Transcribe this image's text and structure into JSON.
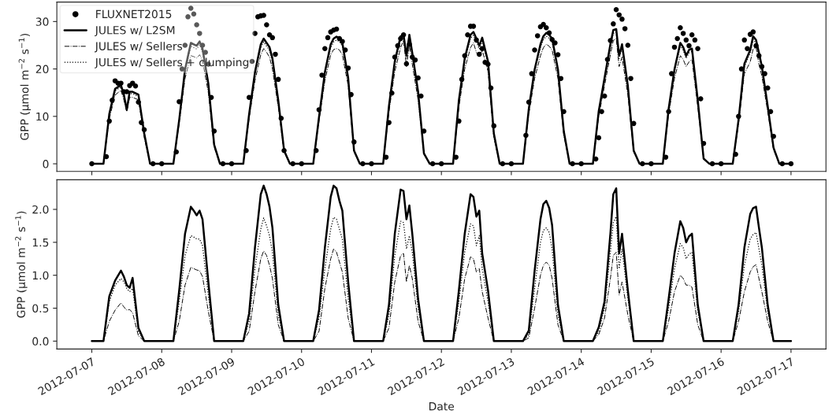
{
  "chart_data": [
    {
      "type": "line",
      "ylabel": "GPP (μmol m$^{−2}$ s$^{−1}$)",
      "legend": "top left",
      "tick_labels": "y",
      "xlim": [
        "2012-07-06T12:00",
        "2012-07-17T12:00"
      ],
      "xticks": [
        "2012-07-07",
        "2012-07-08",
        "2012-07-09",
        "2012-07-10",
        "2012-07-11",
        "2012-07-12",
        "2012-07-13",
        "2012-07-14",
        "2012-07-15",
        "2012-07-16",
        "2012-07-17"
      ],
      "ylim": [
        -1.6,
        34.1
      ],
      "yticks": [
        0,
        10,
        20,
        30
      ],
      "x": [
        "2012-07-07T00:00",
        "2012-07-07T04:00",
        "2012-07-07T06:00",
        "2012-07-07T08:00",
        "2012-07-07T10:00",
        "2012-07-07T11:00",
        "2012-07-07T12:00",
        "2012-07-07T13:00",
        "2012-07-07T14:00",
        "2012-07-07T16:00",
        "2012-07-07T18:00",
        "2012-07-07T20:00",
        "2012-07-08T00:00",
        "2012-07-08T04:00",
        "2012-07-08T06:00",
        "2012-07-08T08:00",
        "2012-07-08T10:00",
        "2012-07-08T11:00",
        "2012-07-08T12:00",
        "2012-07-08T13:00",
        "2012-07-08T14:00",
        "2012-07-08T16:00",
        "2012-07-08T18:00",
        "2012-07-08T20:00",
        "2012-07-09T00:00",
        "2012-07-09T04:00",
        "2012-07-09T06:00",
        "2012-07-09T08:00",
        "2012-07-09T10:00",
        "2012-07-09T11:00",
        "2012-07-09T12:00",
        "2012-07-09T13:00",
        "2012-07-09T14:00",
        "2012-07-09T16:00",
        "2012-07-09T18:00",
        "2012-07-09T20:00",
        "2012-07-10T00:00",
        "2012-07-10T04:00",
        "2012-07-10T06:00",
        "2012-07-10T08:00",
        "2012-07-10T10:00",
        "2012-07-10T11:00",
        "2012-07-10T12:00",
        "2012-07-10T13:00",
        "2012-07-10T14:00",
        "2012-07-10T16:00",
        "2012-07-10T18:00",
        "2012-07-10T20:00",
        "2012-07-11T00:00",
        "2012-07-11T04:00",
        "2012-07-11T06:00",
        "2012-07-11T08:00",
        "2012-07-11T10:00",
        "2012-07-11T11:00",
        "2012-07-11T12:00",
        "2012-07-11T13:00",
        "2012-07-11T14:00",
        "2012-07-11T16:00",
        "2012-07-11T18:00",
        "2012-07-11T20:00",
        "2012-07-12T00:00",
        "2012-07-12T04:00",
        "2012-07-12T06:00",
        "2012-07-12T08:00",
        "2012-07-12T10:00",
        "2012-07-12T11:00",
        "2012-07-12T12:00",
        "2012-07-12T13:00",
        "2012-07-12T14:00",
        "2012-07-12T16:00",
        "2012-07-12T18:00",
        "2012-07-12T20:00",
        "2012-07-13T00:00",
        "2012-07-13T04:00",
        "2012-07-13T06:00",
        "2012-07-13T08:00",
        "2012-07-13T10:00",
        "2012-07-13T11:00",
        "2012-07-13T12:00",
        "2012-07-13T13:00",
        "2012-07-13T14:00",
        "2012-07-13T16:00",
        "2012-07-13T18:00",
        "2012-07-13T20:00",
        "2012-07-14T00:00",
        "2012-07-14T04:00",
        "2012-07-14T06:00",
        "2012-07-14T08:00",
        "2012-07-14T10:00",
        "2012-07-14T11:00",
        "2012-07-14T12:00",
        "2012-07-14T13:00",
        "2012-07-14T14:00",
        "2012-07-14T16:00",
        "2012-07-14T18:00",
        "2012-07-14T20:00",
        "2012-07-15T00:00",
        "2012-07-15T04:00",
        "2012-07-15T06:00",
        "2012-07-15T08:00",
        "2012-07-15T10:00",
        "2012-07-15T11:00",
        "2012-07-15T12:00",
        "2012-07-15T13:00",
        "2012-07-15T14:00",
        "2012-07-15T16:00",
        "2012-07-15T18:00",
        "2012-07-15T20:00",
        "2012-07-16T00:00",
        "2012-07-16T04:00",
        "2012-07-16T06:00",
        "2012-07-16T08:00",
        "2012-07-16T10:00",
        "2012-07-16T11:00",
        "2012-07-16T12:00",
        "2012-07-16T13:00",
        "2012-07-16T14:00",
        "2012-07-16T16:00",
        "2012-07-16T18:00",
        "2012-07-16T20:00",
        "2012-07-17T00:00"
      ],
      "series": [
        {
          "name": "FLUXNET2015",
          "type": "scatter",
          "marker": "circle",
          "color": "#000000",
          "x": [
            "2012-07-07T00:00",
            "2012-07-07T05:00",
            "2012-07-07T06:00",
            "2012-07-07T07:00",
            "2012-07-07T08:00",
            "2012-07-07T09:00",
            "2012-07-07T10:00",
            "2012-07-07T11:00",
            "2012-07-07T12:00",
            "2012-07-07T13:00",
            "2012-07-07T14:00",
            "2012-07-07T15:00",
            "2012-07-07T16:00",
            "2012-07-07T17:00",
            "2012-07-07T18:00",
            "2012-07-07T21:00",
            "2012-07-08T00:00",
            "2012-07-08T05:00",
            "2012-07-08T06:00",
            "2012-07-08T07:00",
            "2012-07-08T08:00",
            "2012-07-08T09:00",
            "2012-07-08T10:00",
            "2012-07-08T11:00",
            "2012-07-08T12:00",
            "2012-07-08T13:00",
            "2012-07-08T14:00",
            "2012-07-08T15:00",
            "2012-07-08T16:00",
            "2012-07-08T17:00",
            "2012-07-08T18:00",
            "2012-07-08T21:00",
            "2012-07-09T00:00",
            "2012-07-09T05:00",
            "2012-07-09T06:00",
            "2012-07-09T07:00",
            "2012-07-09T08:00",
            "2012-07-09T09:00",
            "2012-07-09T10:00",
            "2012-07-09T11:00",
            "2012-07-09T12:00",
            "2012-07-09T13:00",
            "2012-07-09T14:00",
            "2012-07-09T15:00",
            "2012-07-09T16:00",
            "2012-07-09T17:00",
            "2012-07-09T18:00",
            "2012-07-09T21:00",
            "2012-07-10T00:00",
            "2012-07-10T05:00",
            "2012-07-10T06:00",
            "2012-07-10T07:00",
            "2012-07-10T08:00",
            "2012-07-10T09:00",
            "2012-07-10T10:00",
            "2012-07-10T11:00",
            "2012-07-10T12:00",
            "2012-07-10T13:00",
            "2012-07-10T14:00",
            "2012-07-10T15:00",
            "2012-07-10T16:00",
            "2012-07-10T17:00",
            "2012-07-10T18:00",
            "2012-07-10T21:00",
            "2012-07-11T00:00",
            "2012-07-11T05:00",
            "2012-07-11T06:00",
            "2012-07-11T07:00",
            "2012-07-11T08:00",
            "2012-07-11T09:00",
            "2012-07-11T10:00",
            "2012-07-11T11:00",
            "2012-07-11T12:00",
            "2012-07-11T13:00",
            "2012-07-11T14:00",
            "2012-07-11T15:00",
            "2012-07-11T16:00",
            "2012-07-11T17:00",
            "2012-07-11T18:00",
            "2012-07-11T21:00",
            "2012-07-12T00:00",
            "2012-07-12T05:00",
            "2012-07-12T06:00",
            "2012-07-12T07:00",
            "2012-07-12T08:00",
            "2012-07-12T09:00",
            "2012-07-12T10:00",
            "2012-07-12T11:00",
            "2012-07-12T12:00",
            "2012-07-12T13:00",
            "2012-07-12T14:00",
            "2012-07-12T15:00",
            "2012-07-12T16:00",
            "2012-07-12T17:00",
            "2012-07-12T18:00",
            "2012-07-12T21:00",
            "2012-07-13T00:00",
            "2012-07-13T05:00",
            "2012-07-13T06:00",
            "2012-07-13T07:00",
            "2012-07-13T08:00",
            "2012-07-13T09:00",
            "2012-07-13T10:00",
            "2012-07-13T11:00",
            "2012-07-13T12:00",
            "2012-07-13T13:00",
            "2012-07-13T14:00",
            "2012-07-13T15:00",
            "2012-07-13T16:00",
            "2012-07-13T17:00",
            "2012-07-13T18:00",
            "2012-07-13T21:00",
            "2012-07-14T00:00",
            "2012-07-14T05:00",
            "2012-07-14T06:00",
            "2012-07-14T07:00",
            "2012-07-14T08:00",
            "2012-07-14T09:00",
            "2012-07-14T10:00",
            "2012-07-14T11:00",
            "2012-07-14T12:00",
            "2012-07-14T13:00",
            "2012-07-14T14:00",
            "2012-07-14T15:00",
            "2012-07-14T16:00",
            "2012-07-14T17:00",
            "2012-07-14T18:00",
            "2012-07-14T21:00",
            "2012-07-15T00:00",
            "2012-07-15T05:00",
            "2012-07-15T06:00",
            "2012-07-15T07:00",
            "2012-07-15T08:00",
            "2012-07-15T09:00",
            "2012-07-15T10:00",
            "2012-07-15T11:00",
            "2012-07-15T12:00",
            "2012-07-15T13:00",
            "2012-07-15T14:00",
            "2012-07-15T15:00",
            "2012-07-15T16:00",
            "2012-07-15T17:00",
            "2012-07-15T18:00",
            "2012-07-15T21:00",
            "2012-07-16T00:00",
            "2012-07-16T05:00",
            "2012-07-16T06:00",
            "2012-07-16T07:00",
            "2012-07-16T08:00",
            "2012-07-16T09:00",
            "2012-07-16T10:00",
            "2012-07-16T11:00",
            "2012-07-16T12:00",
            "2012-07-16T13:00",
            "2012-07-16T14:00",
            "2012-07-16T15:00",
            "2012-07-16T16:00",
            "2012-07-16T17:00",
            "2012-07-16T18:00",
            "2012-07-16T21:00",
            "2012-07-17T00:00"
          ],
          "values": [
            0,
            1.5,
            9,
            13.4,
            17.5,
            17,
            17,
            15.2,
            15.2,
            16.5,
            17,
            16.4,
            13,
            8.7,
            7.2,
            0,
            0,
            2.5,
            13.1,
            20,
            25,
            31,
            32.8,
            31.6,
            29.3,
            27.5,
            25,
            23.5,
            21,
            14,
            6.9,
            0,
            0,
            2.8,
            14,
            21.6,
            27.5,
            31,
            31.2,
            31.3,
            29.3,
            27.2,
            26.6,
            23.1,
            17.8,
            9.6,
            2.8,
            0,
            0,
            2.8,
            11.4,
            18.7,
            24.3,
            26.6,
            27.8,
            28.2,
            28.4,
            26.4,
            25.8,
            24,
            20.2,
            14.6,
            4.6,
            0,
            0,
            1.4,
            8.7,
            14.9,
            22.5,
            24.9,
            26.4,
            27.2,
            21.1,
            25.2,
            22.5,
            21.9,
            18.1,
            14.3,
            6.9,
            0,
            0,
            1.4,
            9,
            17.8,
            22.8,
            27.2,
            29,
            29,
            26.1,
            23.1,
            24.3,
            21.4,
            21,
            16,
            8,
            0,
            0,
            6,
            13,
            19,
            24,
            27,
            28.9,
            29.4,
            28.7,
            27.6,
            26.2,
            25.5,
            23,
            18,
            11,
            0,
            0,
            1,
            5.5,
            11,
            14.3,
            22,
            26,
            29.5,
            32.5,
            31.4,
            30.5,
            28.5,
            25,
            18,
            8.5,
            0,
            0,
            1.4,
            11,
            19,
            24.6,
            26.4,
            28.7,
            27.5,
            26.1,
            24.9,
            27.2,
            26.1,
            24.3,
            13.7,
            4.3,
            0,
            0,
            2,
            10,
            20,
            26.1,
            24.3,
            27.3,
            27.8,
            24.9,
            22.8,
            20.5,
            19,
            16,
            11,
            5.8,
            0,
            0
          ]
        },
        {
          "name": "JULES w/ L2SM",
          "line_style": "solid",
          "marker": "none",
          "color": "#000000",
          "values": [
            0,
            0,
            10.5,
            15.8,
            16.6,
            14.6,
            11.4,
            15.2,
            15.2,
            14.6,
            6.4,
            0,
            0,
            0,
            9.3,
            19.9,
            25.5,
            25.2,
            24.9,
            25.8,
            24.3,
            16.9,
            4,
            0,
            0,
            0,
            10.5,
            19.3,
            25.2,
            26.4,
            25.5,
            24.6,
            22.2,
            13.4,
            2.8,
            0,
            0,
            0,
            9.9,
            19.3,
            25.2,
            26.4,
            26.8,
            26.5,
            25.5,
            18.1,
            2.8,
            0,
            0,
            0,
            12.2,
            21.6,
            26.9,
            27.2,
            22.8,
            27.2,
            23.4,
            15.2,
            2.2,
            0,
            0,
            0,
            13.4,
            22.2,
            27.2,
            27.8,
            26.4,
            24.9,
            26.6,
            21.6,
            6.4,
            0,
            0,
            0,
            11.6,
            19.9,
            25.2,
            26.9,
            27.6,
            27.2,
            26.4,
            19.9,
            6.9,
            0,
            0,
            0,
            11.1,
            18.1,
            25.2,
            28.2,
            28.4,
            22.8,
            25.2,
            16.4,
            2.8,
            0,
            0,
            0,
            11.6,
            19.9,
            25.5,
            24.6,
            22.8,
            24,
            24.3,
            13.4,
            1.1,
            0,
            0,
            0,
            9.3,
            21.1,
            24,
            26.9,
            26.1,
            23.4,
            20.5,
            12.2,
            3.4,
            0,
            0
          ]
        },
        {
          "name": "JULES w/ Sellers",
          "line_style": "dashdot",
          "marker": "none",
          "color": "#000000",
          "values": [
            0,
            0,
            9.5,
            14.5,
            15.5,
            13.5,
            11,
            14,
            14,
            13.5,
            5.5,
            0,
            0,
            0,
            8.5,
            18,
            22.8,
            22.6,
            22.3,
            23,
            21.8,
            15,
            3.5,
            0,
            0,
            0,
            9.5,
            17.5,
            23,
            24.3,
            23.5,
            22.5,
            20,
            12,
            2.5,
            0,
            0,
            0,
            9,
            17.5,
            23,
            24.1,
            24.3,
            24,
            23,
            16.5,
            2.5,
            0,
            0,
            0,
            11,
            19.5,
            24.5,
            26,
            20.5,
            25,
            21,
            13.5,
            2,
            0,
            0,
            0,
            12,
            20,
            24.5,
            25.5,
            23.5,
            22.5,
            24,
            19.5,
            5.5,
            0,
            0,
            0,
            10.5,
            18,
            22.8,
            24.5,
            25.2,
            24.8,
            24,
            18,
            6,
            0,
            0,
            0,
            10,
            16.5,
            23,
            26,
            26.4,
            20.5,
            22.5,
            14.5,
            2.5,
            0,
            0,
            0,
            10.5,
            18,
            22.8,
            22,
            20.5,
            21.5,
            22,
            12,
            1,
            0,
            0,
            0,
            8.5,
            19,
            21.5,
            24.2,
            24.6,
            21,
            18.5,
            11,
            3,
            0,
            0
          ]
        },
        {
          "name": "JULES w/ Sellers + clumping",
          "line_style": "dotted",
          "marker": "none",
          "color": "#000000",
          "values": [
            0,
            0,
            10.2,
            15.4,
            16.2,
            14.2,
            11.2,
            14.8,
            14.8,
            14.2,
            6.2,
            0,
            0,
            0,
            9.1,
            19.4,
            24.8,
            24.5,
            24.2,
            25.1,
            23.6,
            16.5,
            3.9,
            0,
            0,
            0,
            10.2,
            18.8,
            24.5,
            25.7,
            24.8,
            23.9,
            21.6,
            13,
            2.7,
            0,
            0,
            0,
            9.6,
            18.8,
            24.5,
            25.7,
            26.1,
            25.8,
            24.8,
            17.6,
            2.7,
            0,
            0,
            0,
            11.9,
            21,
            26.2,
            26.5,
            22.2,
            26.5,
            22.8,
            14.8,
            2.1,
            0,
            0,
            0,
            13,
            21.6,
            26.5,
            27.1,
            25.7,
            24.2,
            25.9,
            21,
            6.2,
            0,
            0,
            0,
            11.3,
            19.4,
            24.5,
            26.2,
            26.9,
            26.5,
            25.7,
            19.4,
            6.7,
            0,
            0,
            0,
            10.8,
            17.6,
            24.5,
            27.5,
            27.7,
            22.2,
            24.5,
            16,
            2.7,
            0,
            0,
            0,
            11.3,
            19.4,
            24.8,
            24,
            22.2,
            23.4,
            23.7,
            13,
            1.1,
            0,
            0,
            0,
            9.1,
            20.5,
            23.4,
            26.2,
            25.4,
            22.8,
            20,
            11.9,
            3.3,
            0,
            0
          ]
        }
      ]
    },
    {
      "type": "line",
      "ylabel": "GPP (μmol m$^{−2}$ s$^{−1}$)",
      "xlabel": "Date",
      "xlim": [
        "2012-07-06T12:00",
        "2012-07-17T12:00"
      ],
      "xticks": [
        "2012-07-07",
        "2012-07-08",
        "2012-07-09",
        "2012-07-10",
        "2012-07-11",
        "2012-07-12",
        "2012-07-13",
        "2012-07-14",
        "2012-07-15",
        "2012-07-16",
        "2012-07-17"
      ],
      "ylim": [
        -0.12,
        2.45
      ],
      "yticks": [
        {
          "value": 0,
          "label": "0.0"
        },
        0.5,
        {
          "value": 1,
          "label": "1.0"
        },
        1.5,
        {
          "value": 2,
          "label": "2.0"
        }
      ],
      "x": [
        "2012-07-07T00:00",
        "2012-07-07T04:00",
        "2012-07-07T06:00",
        "2012-07-07T08:00",
        "2012-07-07T10:00",
        "2012-07-07T11:00",
        "2012-07-07T12:00",
        "2012-07-07T13:00",
        "2012-07-07T14:00",
        "2012-07-07T16:00",
        "2012-07-07T18:00",
        "2012-07-07T20:00",
        "2012-07-08T00:00",
        "2012-07-08T04:00",
        "2012-07-08T06:00",
        "2012-07-08T08:00",
        "2012-07-08T10:00",
        "2012-07-08T11:00",
        "2012-07-08T12:00",
        "2012-07-08T13:00",
        "2012-07-08T14:00",
        "2012-07-08T16:00",
        "2012-07-08T18:00",
        "2012-07-08T20:00",
        "2012-07-09T00:00",
        "2012-07-09T04:00",
        "2012-07-09T06:00",
        "2012-07-09T08:00",
        "2012-07-09T10:00",
        "2012-07-09T11:00",
        "2012-07-09T12:00",
        "2012-07-09T13:00",
        "2012-07-09T14:00",
        "2012-07-09T16:00",
        "2012-07-09T18:00",
        "2012-07-09T20:00",
        "2012-07-10T00:00",
        "2012-07-10T04:00",
        "2012-07-10T06:00",
        "2012-07-10T08:00",
        "2012-07-10T10:00",
        "2012-07-10T11:00",
        "2012-07-10T12:00",
        "2012-07-10T13:00",
        "2012-07-10T14:00",
        "2012-07-10T16:00",
        "2012-07-10T18:00",
        "2012-07-10T20:00",
        "2012-07-11T00:00",
        "2012-07-11T04:00",
        "2012-07-11T06:00",
        "2012-07-11T08:00",
        "2012-07-11T10:00",
        "2012-07-11T11:00",
        "2012-07-11T12:00",
        "2012-07-11T13:00",
        "2012-07-11T14:00",
        "2012-07-11T16:00",
        "2012-07-11T18:00",
        "2012-07-11T20:00",
        "2012-07-12T00:00",
        "2012-07-12T04:00",
        "2012-07-12T06:00",
        "2012-07-12T08:00",
        "2012-07-12T10:00",
        "2012-07-12T11:00",
        "2012-07-12T12:00",
        "2012-07-12T13:00",
        "2012-07-12T14:00",
        "2012-07-12T16:00",
        "2012-07-12T18:00",
        "2012-07-12T20:00",
        "2012-07-13T00:00",
        "2012-07-13T04:00",
        "2012-07-13T06:00",
        "2012-07-13T08:00",
        "2012-07-13T10:00",
        "2012-07-13T11:00",
        "2012-07-13T12:00",
        "2012-07-13T13:00",
        "2012-07-13T14:00",
        "2012-07-13T16:00",
        "2012-07-13T18:00",
        "2012-07-13T20:00",
        "2012-07-14T00:00",
        "2012-07-14T04:00",
        "2012-07-14T06:00",
        "2012-07-14T08:00",
        "2012-07-14T10:00",
        "2012-07-14T11:00",
        "2012-07-14T12:00",
        "2012-07-14T13:00",
        "2012-07-14T14:00",
        "2012-07-14T16:00",
        "2012-07-14T18:00",
        "2012-07-14T20:00",
        "2012-07-15T00:00",
        "2012-07-15T04:00",
        "2012-07-15T06:00",
        "2012-07-15T08:00",
        "2012-07-15T10:00",
        "2012-07-15T11:00",
        "2012-07-15T12:00",
        "2012-07-15T13:00",
        "2012-07-15T14:00",
        "2012-07-15T16:00",
        "2012-07-15T18:00",
        "2012-07-15T20:00",
        "2012-07-16T00:00",
        "2012-07-16T04:00",
        "2012-07-16T06:00",
        "2012-07-16T08:00",
        "2012-07-16T10:00",
        "2012-07-16T11:00",
        "2012-07-16T12:00",
        "2012-07-16T13:00",
        "2012-07-16T14:00",
        "2012-07-16T16:00",
        "2012-07-16T18:00",
        "2012-07-16T20:00",
        "2012-07-17T00:00"
      ],
      "series": [
        {
          "line_style": "solid",
          "color": "#000000",
          "values": [
            0,
            0,
            0.68,
            0.92,
            1.07,
            0.98,
            0.85,
            0.81,
            0.96,
            0.2,
            0,
            0,
            0,
            0,
            0.77,
            1.63,
            2.04,
            1.98,
            1.91,
            1.98,
            1.85,
            0.9,
            0,
            0,
            0,
            0,
            0.42,
            1.42,
            2.23,
            2.36,
            2.23,
            2.04,
            1.72,
            0.55,
            0,
            0,
            0,
            0,
            0.47,
            1.42,
            2.19,
            2.36,
            2.32,
            2.13,
            1.98,
            0.9,
            0,
            0,
            0,
            0,
            0.55,
            1.63,
            2.3,
            2.28,
            1.85,
            2.06,
            1.63,
            0.64,
            0,
            0,
            0,
            0,
            0.77,
            1.63,
            2.23,
            2.19,
            1.89,
            1.98,
            1.33,
            0.77,
            0,
            0,
            0,
            0,
            0.16,
            1.07,
            1.85,
            2.08,
            2.13,
            2.02,
            1.76,
            0.55,
            0,
            0,
            0,
            0,
            0.21,
            0.6,
            1.63,
            2.23,
            2.32,
            1.33,
            1.63,
            0.77,
            0,
            0,
            0,
            0,
            0.64,
            1.33,
            1.82,
            1.72,
            1.5,
            1.59,
            1.63,
            0.55,
            0,
            0,
            0,
            0,
            0.55,
            1.42,
            1.93,
            2.02,
            2.04,
            1.72,
            1.42,
            0.55,
            0,
            0,
            0
          ]
        },
        {
          "line_style": "dashdot",
          "color": "#000000",
          "values": [
            0,
            0,
            0.3,
            0.47,
            0.58,
            0.52,
            0.47,
            0.48,
            0.43,
            0.08,
            0,
            0,
            0,
            0,
            0.3,
            0.85,
            1.12,
            1.1,
            1.08,
            1.07,
            0.98,
            0.45,
            0,
            0,
            0,
            0,
            0.15,
            0.75,
            1.25,
            1.37,
            1.3,
            1.15,
            0.95,
            0.25,
            0,
            0,
            0,
            0,
            0.15,
            0.8,
            1.25,
            1.4,
            1.35,
            1.2,
            1.05,
            0.35,
            0,
            0,
            0,
            0,
            0.2,
            0.9,
            1.3,
            1.33,
            0.9,
            1.15,
            0.95,
            0.3,
            0,
            0,
            0,
            0,
            0.35,
            0.95,
            1.28,
            1.25,
            1.05,
            1.1,
            0.75,
            0.35,
            0,
            0,
            0,
            0,
            0.05,
            0.5,
            1.0,
            1.15,
            1.2,
            1.15,
            0.95,
            0.25,
            0,
            0,
            0,
            0,
            0.1,
            0.35,
            0.95,
            1.3,
            1.35,
            0.7,
            0.9,
            0.4,
            0,
            0,
            0,
            0,
            0.3,
            0.75,
            1.0,
            0.95,
            0.85,
            0.85,
            0.82,
            0.25,
            0,
            0,
            0,
            0,
            0.3,
            0.75,
            1.05,
            1.13,
            1.16,
            0.95,
            0.75,
            0.3,
            0,
            0,
            0
          ]
        },
        {
          "line_style": "dotted",
          "color": "#000000",
          "values": [
            0,
            0,
            0.6,
            0.85,
            0.95,
            0.9,
            0.8,
            0.75,
            0.8,
            0.15,
            0,
            0,
            0,
            0,
            0.6,
            1.3,
            1.6,
            1.58,
            1.55,
            1.55,
            1.45,
            0.7,
            0,
            0,
            0,
            0,
            0.3,
            1.1,
            1.7,
            1.87,
            1.75,
            1.6,
            1.35,
            0.4,
            0,
            0,
            0,
            0,
            0.35,
            1.1,
            1.7,
            1.88,
            1.85,
            1.7,
            1.55,
            0.65,
            0,
            0,
            0,
            0,
            0.4,
            1.3,
            1.82,
            1.8,
            1.4,
            1.6,
            1.35,
            0.5,
            0,
            0,
            0,
            0,
            0.6,
            1.35,
            1.78,
            1.75,
            1.45,
            1.6,
            1.1,
            0.6,
            0,
            0,
            0,
            0,
            0.1,
            0.8,
            1.5,
            1.68,
            1.72,
            1.65,
            1.4,
            0.4,
            0,
            0,
            0,
            0,
            0.15,
            0.5,
            1.35,
            1.8,
            1.89,
            1.1,
            1.4,
            0.65,
            0,
            0,
            0,
            0,
            0.5,
            1.1,
            1.48,
            1.42,
            1.25,
            1.32,
            1.35,
            0.45,
            0,
            0,
            0,
            0,
            0.45,
            1.15,
            1.55,
            1.62,
            1.65,
            1.4,
            1.15,
            0.45,
            0,
            0,
            0
          ]
        }
      ]
    }
  ]
}
